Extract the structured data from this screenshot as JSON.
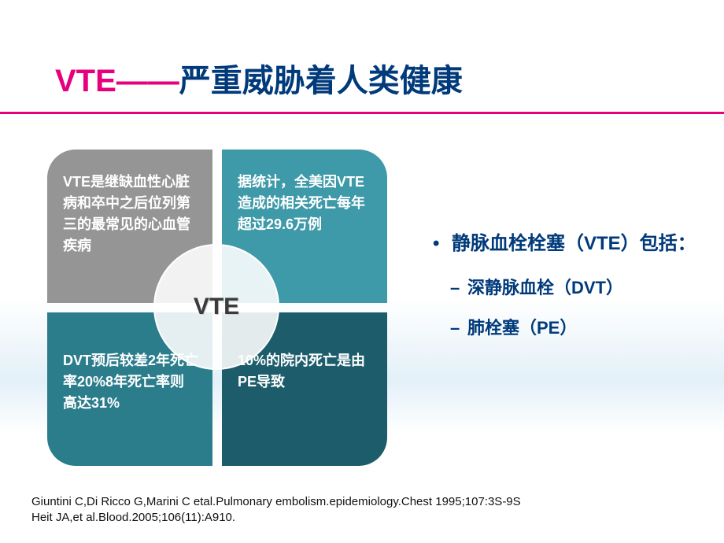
{
  "title": {
    "vte": "VTE——",
    "rest": "严重威胁着人类健康",
    "vte_color": "#e6007e",
    "rest_color": "#003a7a",
    "fontsize": 40
  },
  "divider_color": "#e6007e",
  "quad": {
    "center_label": "VTE",
    "boxes": [
      {
        "text": "VTE是继缺血性心脏病和卒中之后位列第三的最常见的心血管疾病",
        "bg": "#959595"
      },
      {
        "text": "据统计，全美因VTE造成的相关死亡每年超过29.6万例",
        "bg": "#3e99a8"
      },
      {
        "text": "DVT预后较差2年死亡率20%8年死亡率则高达31%",
        "bg": "#2b7d8c"
      },
      {
        "text": "10%的院内死亡是由PE导致",
        "bg": "#1d5d6b"
      }
    ]
  },
  "bullets": {
    "main": "静脉血栓栓塞（VTE）包括：",
    "subs": [
      "深静脉血栓（DVT）",
      "肺栓塞（PE）"
    ],
    "color": "#003a7a",
    "main_fontsize": 24,
    "sub_fontsize": 22
  },
  "refs": [
    "Giuntini C,Di Ricco G,Marini C etal.Pulmonary embolism.epidemiology.Chest 1995;107:3S-9S",
    "Heit JA,et al.Blood.2005;106(11):A910."
  ]
}
